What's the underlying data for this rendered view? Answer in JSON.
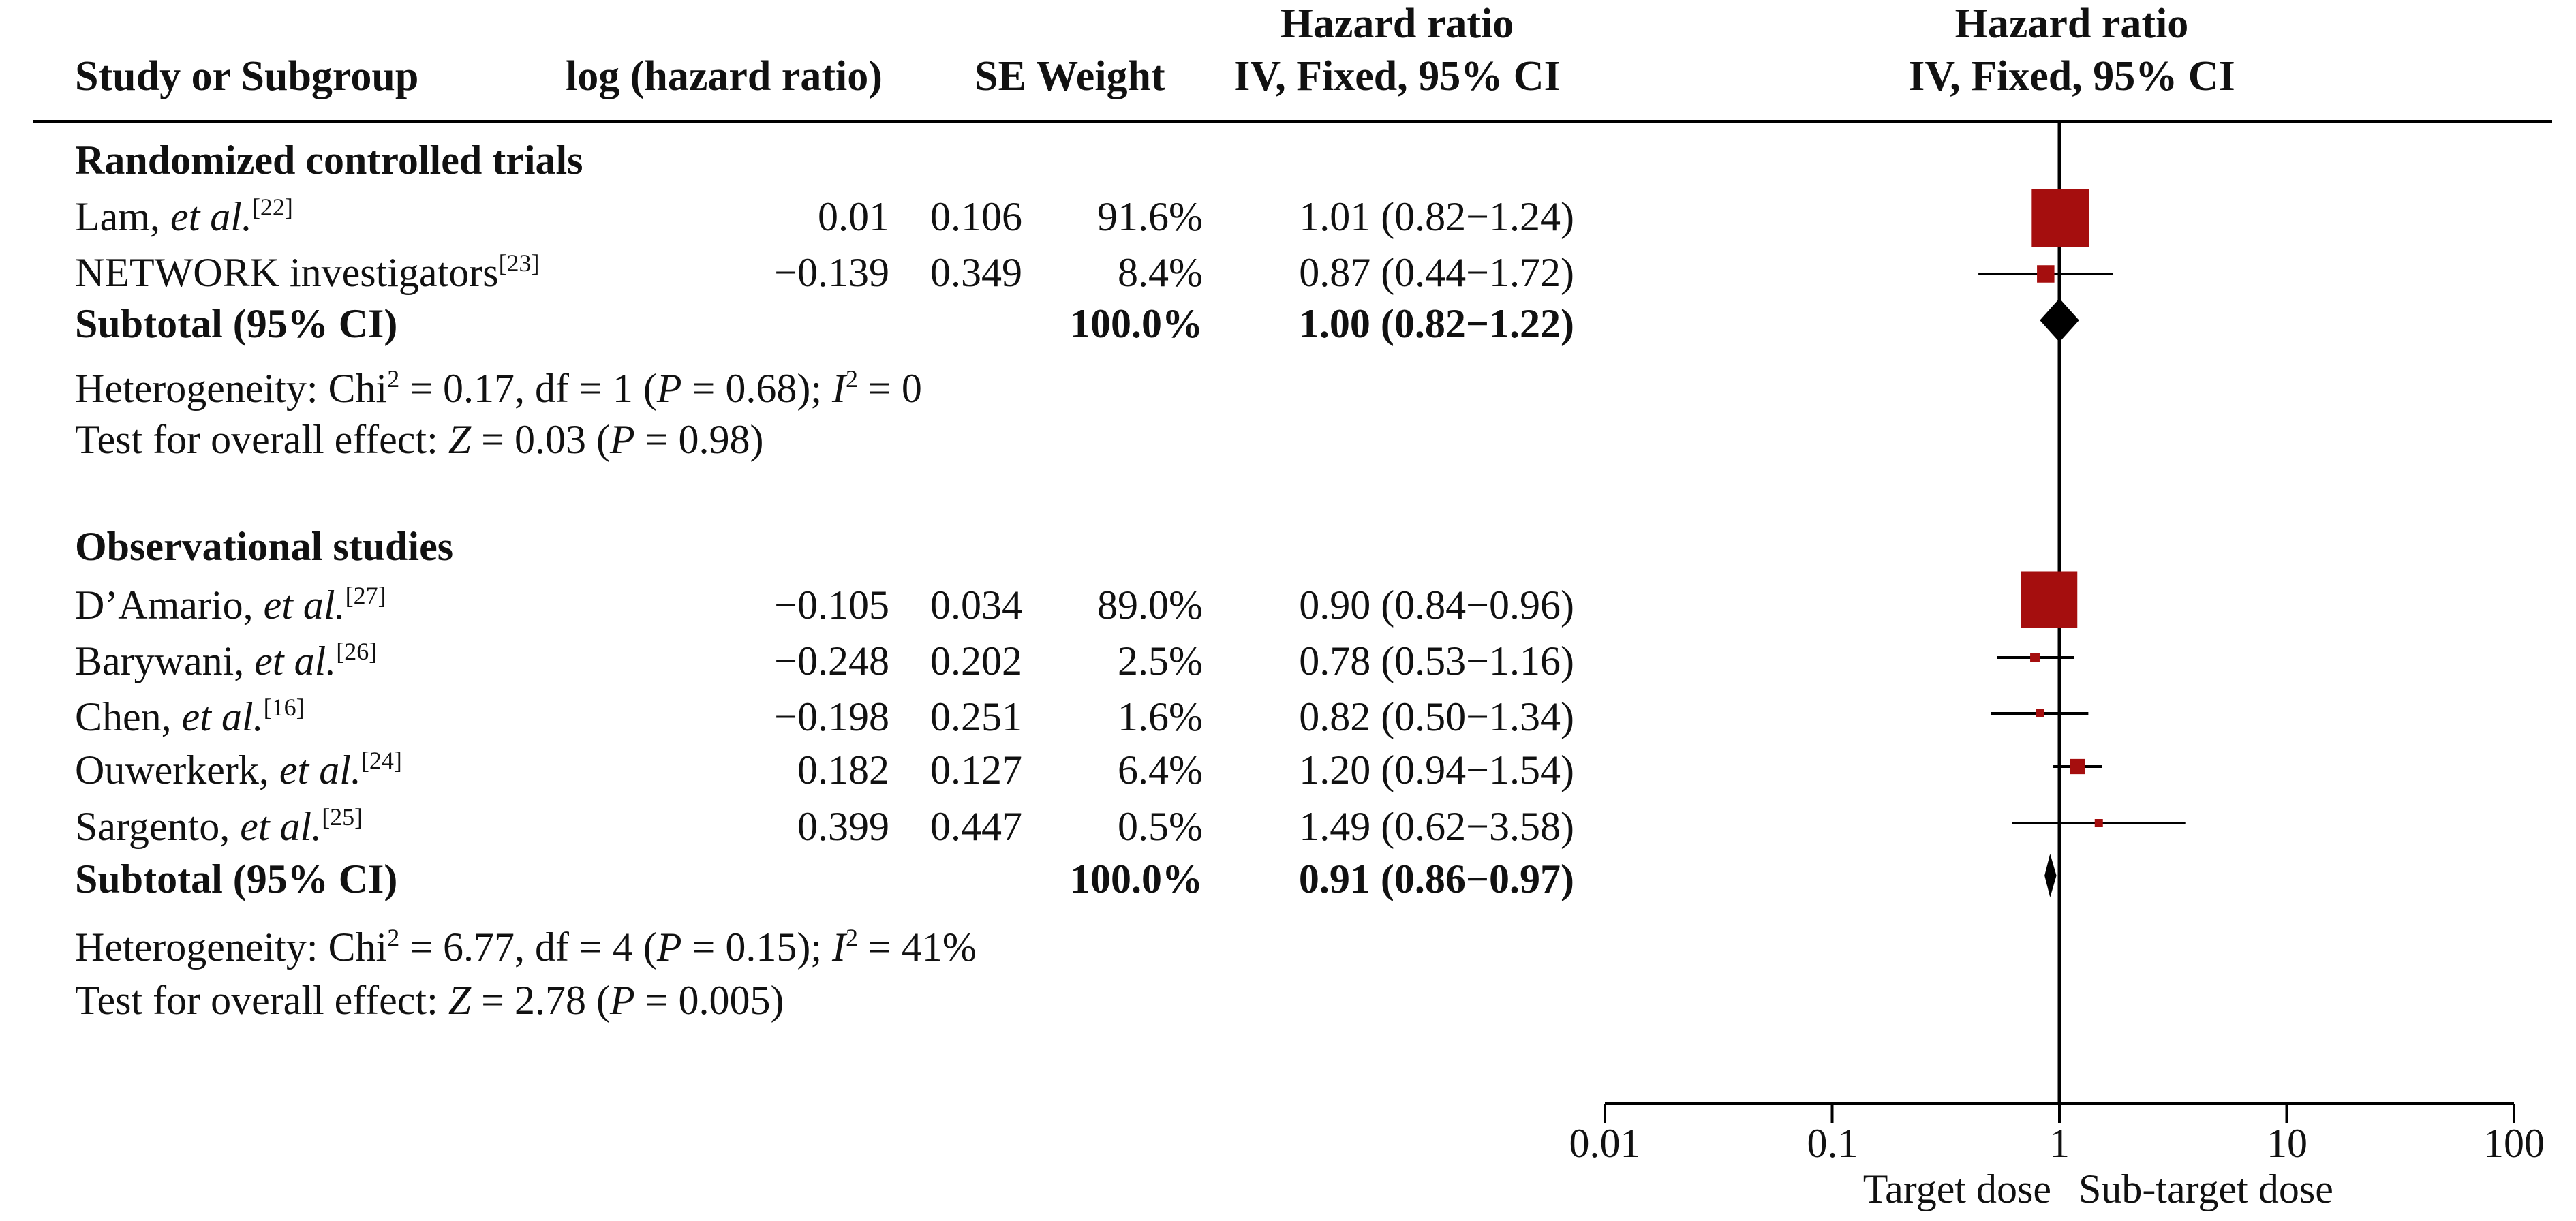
{
  "headers": {
    "study": "Study or Subgroup",
    "loghr": "log (hazard ratio)",
    "se_weight": "SE Weight",
    "hr_table_line1": "Hazard ratio",
    "hr_table_line2": "IV, Fixed, 95% CI",
    "hr_plot_line1": "Hazard ratio",
    "hr_plot_line2": "IV, Fixed, 95% CI"
  },
  "groups": [
    {
      "title": "Randomized controlled trials",
      "studies": [
        {
          "name": "Lam, ",
          "etal": "et al.",
          "ref": "[22]",
          "loghr": "0.01",
          "se": "0.106",
          "weight": "91.6%",
          "ci_text": "1.01 (0.82−1.24)"
        },
        {
          "name": "NETWORK investigators",
          "etal": "",
          "ref": "[23]",
          "loghr": "−0.139",
          "se": "0.349",
          "weight": "8.4%",
          "ci_text": "0.87 (0.44−1.72)"
        }
      ],
      "subtotal": {
        "label": "Subtotal (95% CI)",
        "weight": "100.0%",
        "ci_text": "1.00 (0.82−1.22)"
      },
      "heterogeneity": {
        "prefix": "Heterogeneity: Chi",
        "chi_sup": "2",
        "chi_eq": " = 0.17, df = 1 (",
        "p": "P",
        "p_eq": " = 0.68); ",
        "i": "I",
        "i_sup": "2",
        "i_eq": " = 0"
      },
      "overall": {
        "prefix": "Test for overall effect: ",
        "z": "Z",
        "z_eq": " = 0.03 (",
        "p": "P",
        "p_eq": " = 0.98)"
      }
    },
    {
      "title": "Observational studies",
      "studies": [
        {
          "name": "D’Amario, ",
          "etal": "et al.",
          "ref": "[27]",
          "loghr": "−0.105",
          "se": "0.034",
          "weight": "89.0%",
          "ci_text": "0.90 (0.84−0.96)"
        },
        {
          "name": "Barywani, ",
          "etal": "et al.",
          "ref": "[26]",
          "loghr": "−0.248",
          "se": "0.202",
          "weight": "2.5%",
          "ci_text": "0.78 (0.53−1.16)"
        },
        {
          "name": "Chen, ",
          "etal": "et al.",
          "ref": "[16]",
          "loghr": "−0.198",
          "se": "0.251",
          "weight": "1.6%",
          "ci_text": "0.82 (0.50−1.34)"
        },
        {
          "name": "Ouwerkerk, ",
          "etal": "et al.",
          "ref": "[24]",
          "loghr": "0.182",
          "se": "0.127",
          "weight": "6.4%",
          "ci_text": "1.20 (0.94−1.54)"
        },
        {
          "name": "Sargento, ",
          "etal": "et al.",
          "ref": "[25]",
          "loghr": "0.399",
          "se": "0.447",
          "weight": "0.5%",
          "ci_text": "1.49 (0.62−3.58)"
        }
      ],
      "subtotal": {
        "label": "Subtotal (95% CI)",
        "weight": "100.0%",
        "ci_text": "0.91 (0.86−0.97)"
      },
      "heterogeneity": {
        "prefix": "Heterogeneity: Chi",
        "chi_sup": "2",
        "chi_eq": " = 6.77, df = 4 (",
        "p": "P",
        "p_eq": " = 0.15); ",
        "i": "I",
        "i_sup": "2",
        "i_eq": " = 41%"
      },
      "overall": {
        "prefix": "Test for overall effect: ",
        "z": "Z",
        "z_eq": " = 2.78 (",
        "p": "P",
        "p_eq": " = 0.005)"
      }
    }
  ],
  "axis": {
    "ticks": [
      "0.01",
      "0.1",
      "1",
      "10",
      "100"
    ],
    "favours_left": "Target dose",
    "favours_right": "Sub-target dose"
  },
  "colors": {
    "marker": "#a50e0e",
    "diamond": "#000000",
    "line": "#000000"
  },
  "chart_data": {
    "type": "forest",
    "x_scale": "log",
    "xlim": [
      0.01,
      100
    ],
    "reference_line": 1,
    "series": [
      {
        "name": "Randomized controlled trials",
        "points": [
          {
            "study": "Lam, et al.",
            "hr": 1.01,
            "lo": 0.82,
            "hi": 1.24,
            "weight": 91.6
          },
          {
            "study": "NETWORK investigators",
            "hr": 0.87,
            "lo": 0.44,
            "hi": 1.72,
            "weight": 8.4
          }
        ],
        "subtotal": {
          "hr": 1.0,
          "lo": 0.82,
          "hi": 1.22
        }
      },
      {
        "name": "Observational studies",
        "points": [
          {
            "study": "D’Amario, et al.",
            "hr": 0.9,
            "lo": 0.84,
            "hi": 0.96,
            "weight": 89.0
          },
          {
            "study": "Barywani, et al.",
            "hr": 0.78,
            "lo": 0.53,
            "hi": 1.16,
            "weight": 2.5
          },
          {
            "study": "Chen, et al.",
            "hr": 0.82,
            "lo": 0.5,
            "hi": 1.34,
            "weight": 1.6
          },
          {
            "study": "Ouwerkerk, et al.",
            "hr": 1.2,
            "lo": 0.94,
            "hi": 1.54,
            "weight": 6.4
          },
          {
            "study": "Sargento, et al.",
            "hr": 1.49,
            "lo": 0.62,
            "hi": 3.58,
            "weight": 0.5
          }
        ],
        "subtotal": {
          "hr": 0.91,
          "lo": 0.86,
          "hi": 0.97
        }
      }
    ]
  }
}
